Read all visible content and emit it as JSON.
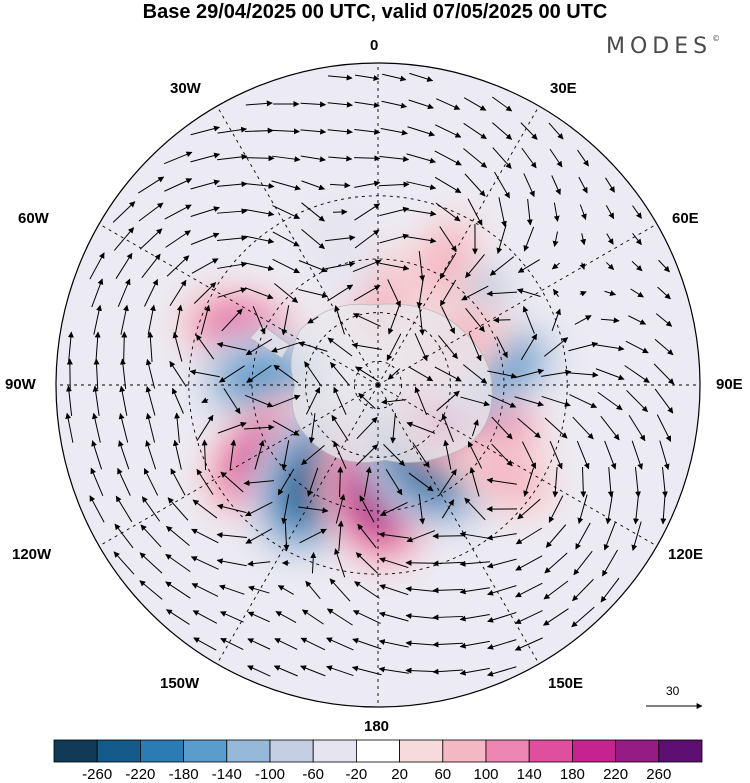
{
  "header": {
    "title": "Base 29/04/2025 00 UTC, valid 07/05/2025 00 UTC",
    "brand": "MODES",
    "brand_mark": "©"
  },
  "map": {
    "projection": "south-polar-stereographic",
    "longitude_labels": {
      "top": "0",
      "bottom": "180",
      "left": "90W",
      "right": "90E",
      "upper_left_1": "30W",
      "upper_left_2": "60W",
      "upper_right_1": "30E",
      "upper_right_2": "60E",
      "lower_left_1": "120W",
      "lower_left_2": "150W",
      "lower_right_1": "120E",
      "lower_right_2": "150E"
    },
    "reference_vector": {
      "value": "30"
    },
    "anomaly_centers": [
      {
        "lon": -70,
        "lat": -35,
        "value": 150
      },
      {
        "lon": -88,
        "lat": -45,
        "value": -170
      },
      {
        "lon": -125,
        "lat": -40,
        "value": 200
      },
      {
        "lon": -148,
        "lat": -45,
        "value": -240
      },
      {
        "lon": 178,
        "lat": -50,
        "value": 230
      },
      {
        "lon": 145,
        "lat": -55,
        "value": -230
      },
      {
        "lon": 112,
        "lat": -50,
        "value": 190
      },
      {
        "lon": 80,
        "lat": -42,
        "value": -140
      },
      {
        "lon": 48,
        "lat": -45,
        "value": -120
      },
      {
        "lon": 0,
        "lat": -55,
        "value": 80
      },
      {
        "lon": 28,
        "lat": -35,
        "value": 60
      },
      {
        "lon": 62,
        "lat": -52,
        "value": 70
      },
      {
        "lon": 125,
        "lat": -30,
        "value": 80
      },
      {
        "lon": -15,
        "lat": -35,
        "value": -50
      }
    ]
  },
  "colorbar": {
    "ticks": [
      "-260",
      "-220",
      "-180",
      "-140",
      "-100",
      "-60",
      "-20",
      "20",
      "60",
      "100",
      "140",
      "180",
      "220",
      "260"
    ],
    "colors": [
      "#113a56",
      "#145a8a",
      "#2b7bb5",
      "#5a9ccb",
      "#96b9da",
      "#c5cfe4",
      "#e6e5ef",
      "#ffffff",
      "#f7dbda",
      "#f4b8c4",
      "#ed86b1",
      "#e04f9f",
      "#c52490",
      "#951c85",
      "#5e0f72"
    ]
  }
}
